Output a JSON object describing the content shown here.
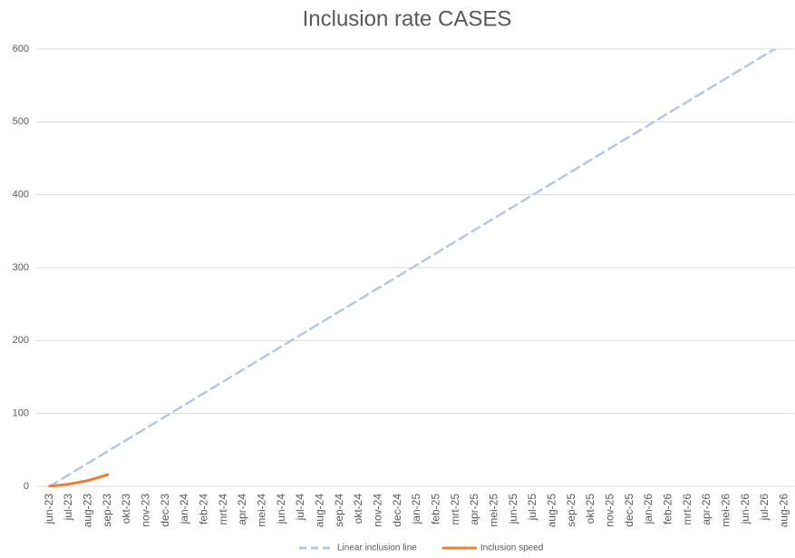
{
  "chart_data": {
    "type": "line",
    "title": "Inclusion rate CASES",
    "categories": [
      "jun-23",
      "jul-23",
      "aug-23",
      "sep-23",
      "okt-23",
      "nov-23",
      "dec-23",
      "jan-24",
      "feb-24",
      "mrt-24",
      "apr-24",
      "mei-24",
      "jun-24",
      "jul-24",
      "aug-24",
      "sep-24",
      "okt-24",
      "nov-24",
      "dec-24",
      "jan-25",
      "feb-25",
      "mrt-25",
      "apr-25",
      "mei-25",
      "jun-25",
      "jul-25",
      "aug-25",
      "sep-25",
      "okt-25",
      "nov-25",
      "dec-25",
      "jan-26",
      "feb-26",
      "mrt-26",
      "apr-26",
      "mei-26",
      "jun-26",
      "jul-26",
      "aug-26"
    ],
    "series": [
      {
        "name": "Linear inclusion line",
        "color": "#b4c7e7",
        "dash": true,
        "values": [
          0,
          16,
          32,
          48,
          64,
          80,
          96,
          112,
          128,
          144,
          160,
          176,
          192,
          208,
          224,
          240,
          256,
          272,
          288,
          304,
          320,
          336,
          352,
          368,
          384,
          400,
          416,
          432,
          448,
          464,
          480,
          496,
          512,
          528,
          544,
          560,
          576,
          592,
          608
        ]
      },
      {
        "name": "Inclusion speed",
        "color": "#ed7d31",
        "dash": false,
        "values": [
          0,
          3,
          8,
          16,
          null,
          null,
          null,
          null,
          null,
          null,
          null,
          null,
          null,
          null,
          null,
          null,
          null,
          null,
          null,
          null,
          null,
          null,
          null,
          null,
          null,
          null,
          null,
          null,
          null,
          null,
          null,
          null,
          null,
          null,
          null,
          null,
          null,
          null,
          null
        ]
      }
    ],
    "ylim": [
      0,
      600
    ],
    "yticks": [
      0,
      100,
      200,
      300,
      400,
      500,
      600
    ],
    "grid": true,
    "legend": "bottom"
  }
}
